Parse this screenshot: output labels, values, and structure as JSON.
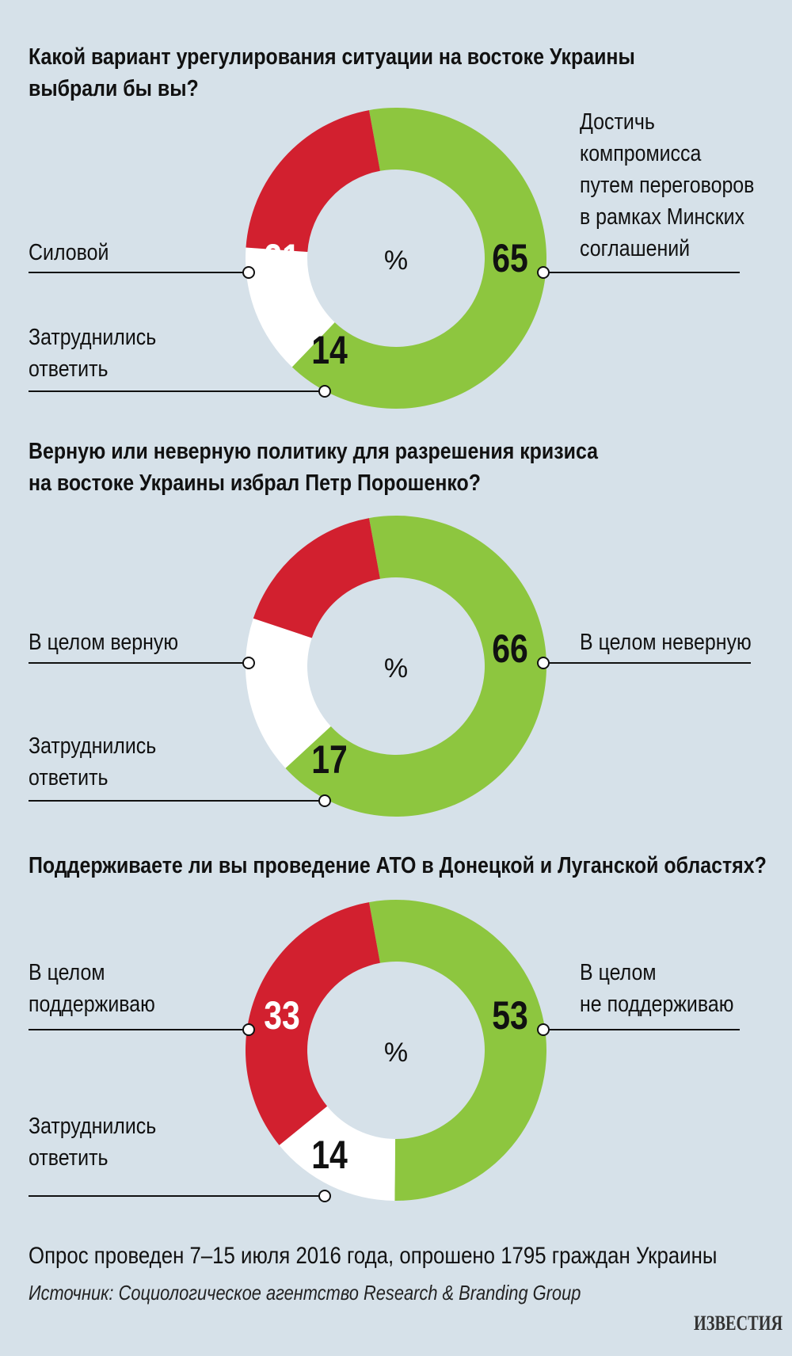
{
  "chart_data": [
    {
      "type": "pie",
      "title": "Какой вариант урегулирования ситуации на востоке Украины выбрали бы вы?",
      "center_label": "%",
      "slices": [
        {
          "label": "Достичь компромисса путем переговоров в рамках Минских соглашений",
          "value": 65,
          "value_text": "65",
          "color": "#8dc63f"
        },
        {
          "label": "Затруднились ответить",
          "value": 14,
          "value_text": "14",
          "color": "#ffffff"
        },
        {
          "label": "Силовой",
          "value": 21,
          "value_text": "21",
          "color": "#d2202f"
        }
      ]
    },
    {
      "type": "pie",
      "title": "Верную или неверную политику для разрешения кризиса на востоке Украины избрал Петр Порошенко?",
      "center_label": "%",
      "slices": [
        {
          "label": "В целом неверную",
          "value": 66,
          "value_text": "66",
          "color": "#8dc63f"
        },
        {
          "label": "Затруднились ответить",
          "value": 17,
          "value_text": "17",
          "color": "#ffffff"
        },
        {
          "label": "В целом верную",
          "value": 17,
          "value_text": "17",
          "color": "#d2202f"
        }
      ]
    },
    {
      "type": "pie",
      "title": "Поддерживаете ли вы проведение АТО в Донецкой и Луганской областях?",
      "center_label": "%",
      "slices": [
        {
          "label": "В целом не поддерживаю",
          "value": 53,
          "value_text": "53",
          "color": "#8dc63f"
        },
        {
          "label": "Затруднились ответить",
          "value": 14,
          "value_text": "14",
          "color": "#ffffff"
        },
        {
          "label": "В целом поддерживаю",
          "value": 33,
          "value_text": "33",
          "color": "#d2202f"
        }
      ]
    }
  ],
  "texts": {
    "q1": {
      "title_lines": [
        "Какой вариант урегулирования ситуации на востоке Украины",
        "выбрали бы вы?"
      ],
      "green_lines": [
        "Достичь",
        "компромисса",
        "путем переговоров",
        "в рамках Минских",
        "соглашений"
      ],
      "red_lines": [
        "Силовой"
      ],
      "white_lines": [
        "Затруднились",
        "ответить"
      ]
    },
    "q2": {
      "title_lines": [
        "Верную или неверную политику для разрешения кризиса",
        "на востоке Украины избрал Петр Порошенко?"
      ],
      "green_lines": [
        "В целом неверную"
      ],
      "red_lines": [
        "В целом верную"
      ],
      "white_lines": [
        "Затруднились",
        "ответить"
      ]
    },
    "q3": {
      "title_lines": [
        "Поддерживаете ли вы проведение АТО в Донецкой и Луганской областях?"
      ],
      "green_lines": [
        "В целом",
        "не поддерживаю"
      ],
      "red_lines": [
        "В целом",
        "поддерживаю"
      ],
      "white_lines": [
        "Затруднились",
        "ответить"
      ]
    }
  },
  "footer": {
    "note": "Опрос проведен 7–15 июля 2016 года, опрошено 1795 граждан Украины",
    "source": "Источник: Социологическое агентство Research & Branding Group",
    "logo": "ИЗВЕСТИЯ"
  },
  "colors": {
    "background": "#d6e1e9",
    "green": "#8dc63f",
    "red": "#d2202f",
    "white": "#ffffff"
  }
}
